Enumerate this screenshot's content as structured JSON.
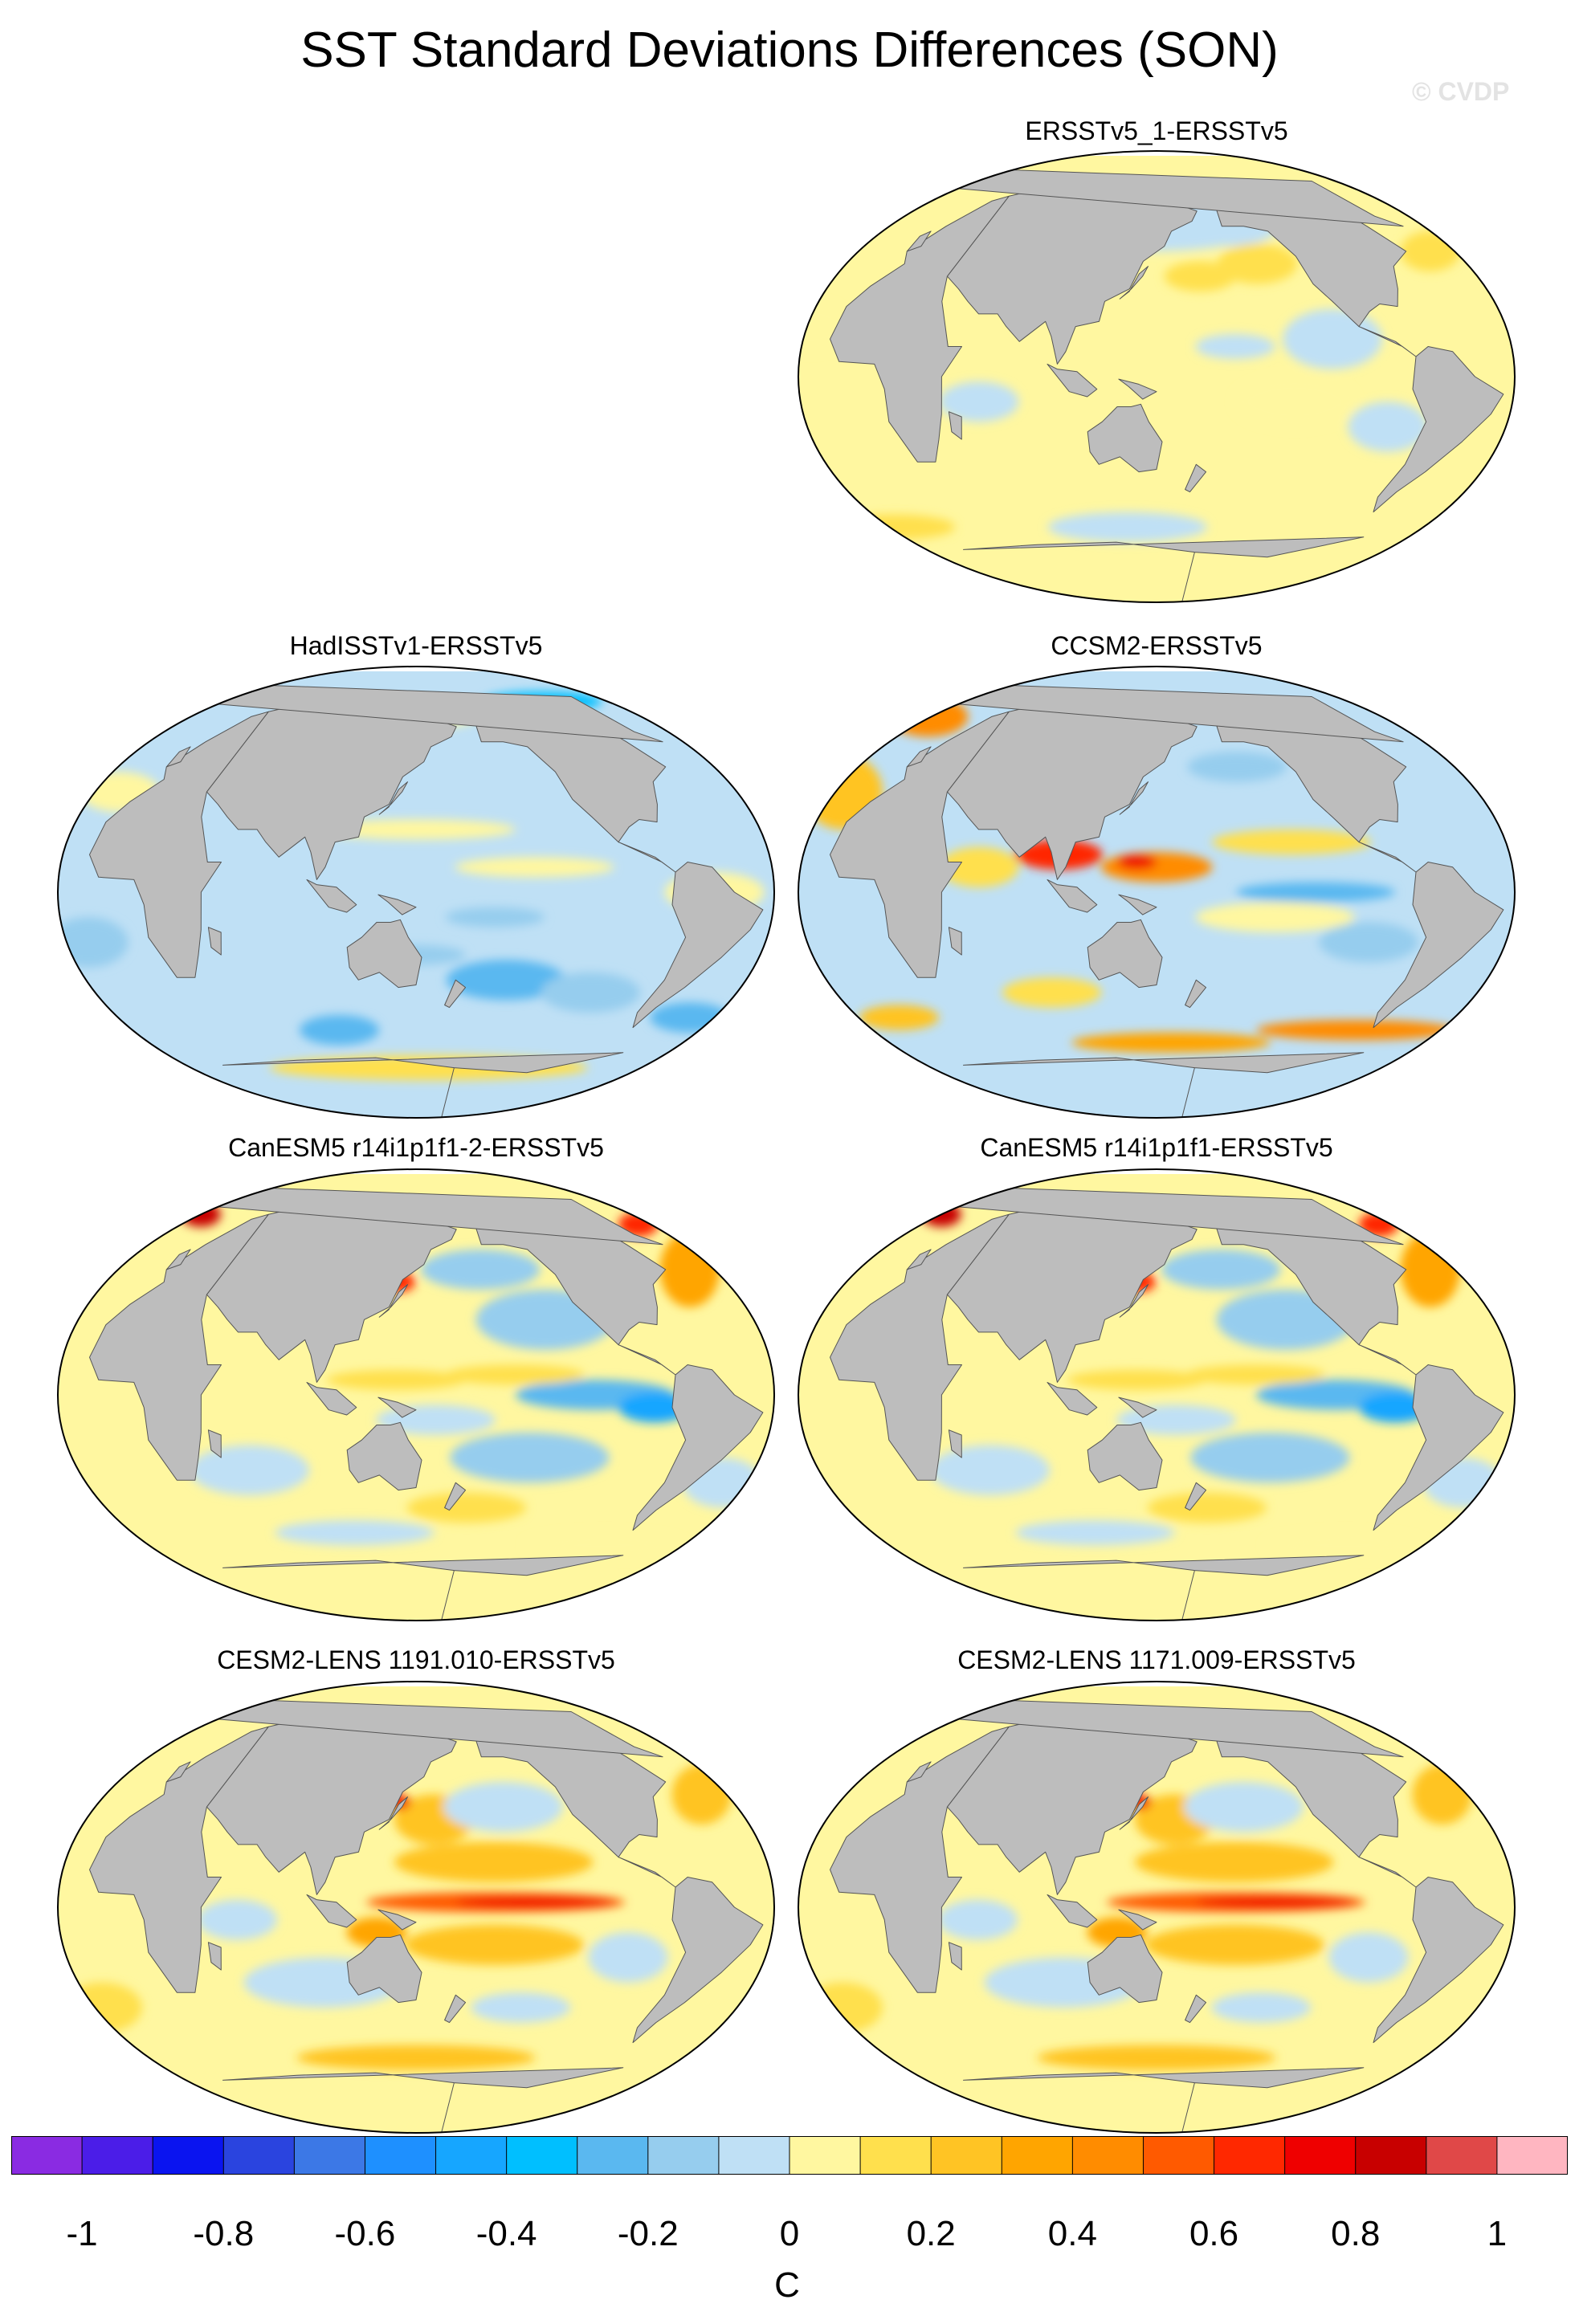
{
  "title": "SST Standard Deviations Differences (SON)",
  "credit": "© CVDP",
  "panels": [
    {
      "label": "ERSSTv5_1-ERSSTv5",
      "pattern": "weak"
    },
    {
      "label": "HadISSTv1-ERSSTv5",
      "pattern": "cool"
    },
    {
      "label": "CCSM2-ERSSTv5",
      "pattern": "mixed"
    },
    {
      "label": "CanESM5 r14i1p1f1-2-ERSSTv5",
      "pattern": "cool-pacific"
    },
    {
      "label": "CanESM5 r14i1p1f1-ERSSTv5",
      "pattern": "cool-pacific"
    },
    {
      "label": "CESM2-LENS 1191.010-ERSSTv5",
      "pattern": "warm-enso"
    },
    {
      "label": "CESM2-LENS 1171.009-ERSSTv5",
      "pattern": "warm-enso"
    }
  ],
  "colorbar": {
    "unit": "C",
    "ticks": [
      "-1",
      "-0.8",
      "-0.6",
      "-0.4",
      "-0.2",
      "0",
      "0.2",
      "0.4",
      "0.6",
      "0.8",
      "1"
    ],
    "colors": [
      "#8a2be2",
      "#4b1de8",
      "#0a14f0",
      "#2a44df",
      "#3c78e6",
      "#1e90ff",
      "#16a6ff",
      "#00bfff",
      "#5ab8f0",
      "#96cdee",
      "#bfe0f5",
      "#fff7a0",
      "#ffe04d",
      "#ffc424",
      "#ffa500",
      "#ff8c00",
      "#ff5a00",
      "#ff2800",
      "#ef0000",
      "#c80000",
      "#e04848",
      "#ffb6c1"
    ]
  },
  "colors": {
    "land": "#bdbdbd",
    "coast": "#555555",
    "ice_white": "#ffffff"
  }
}
